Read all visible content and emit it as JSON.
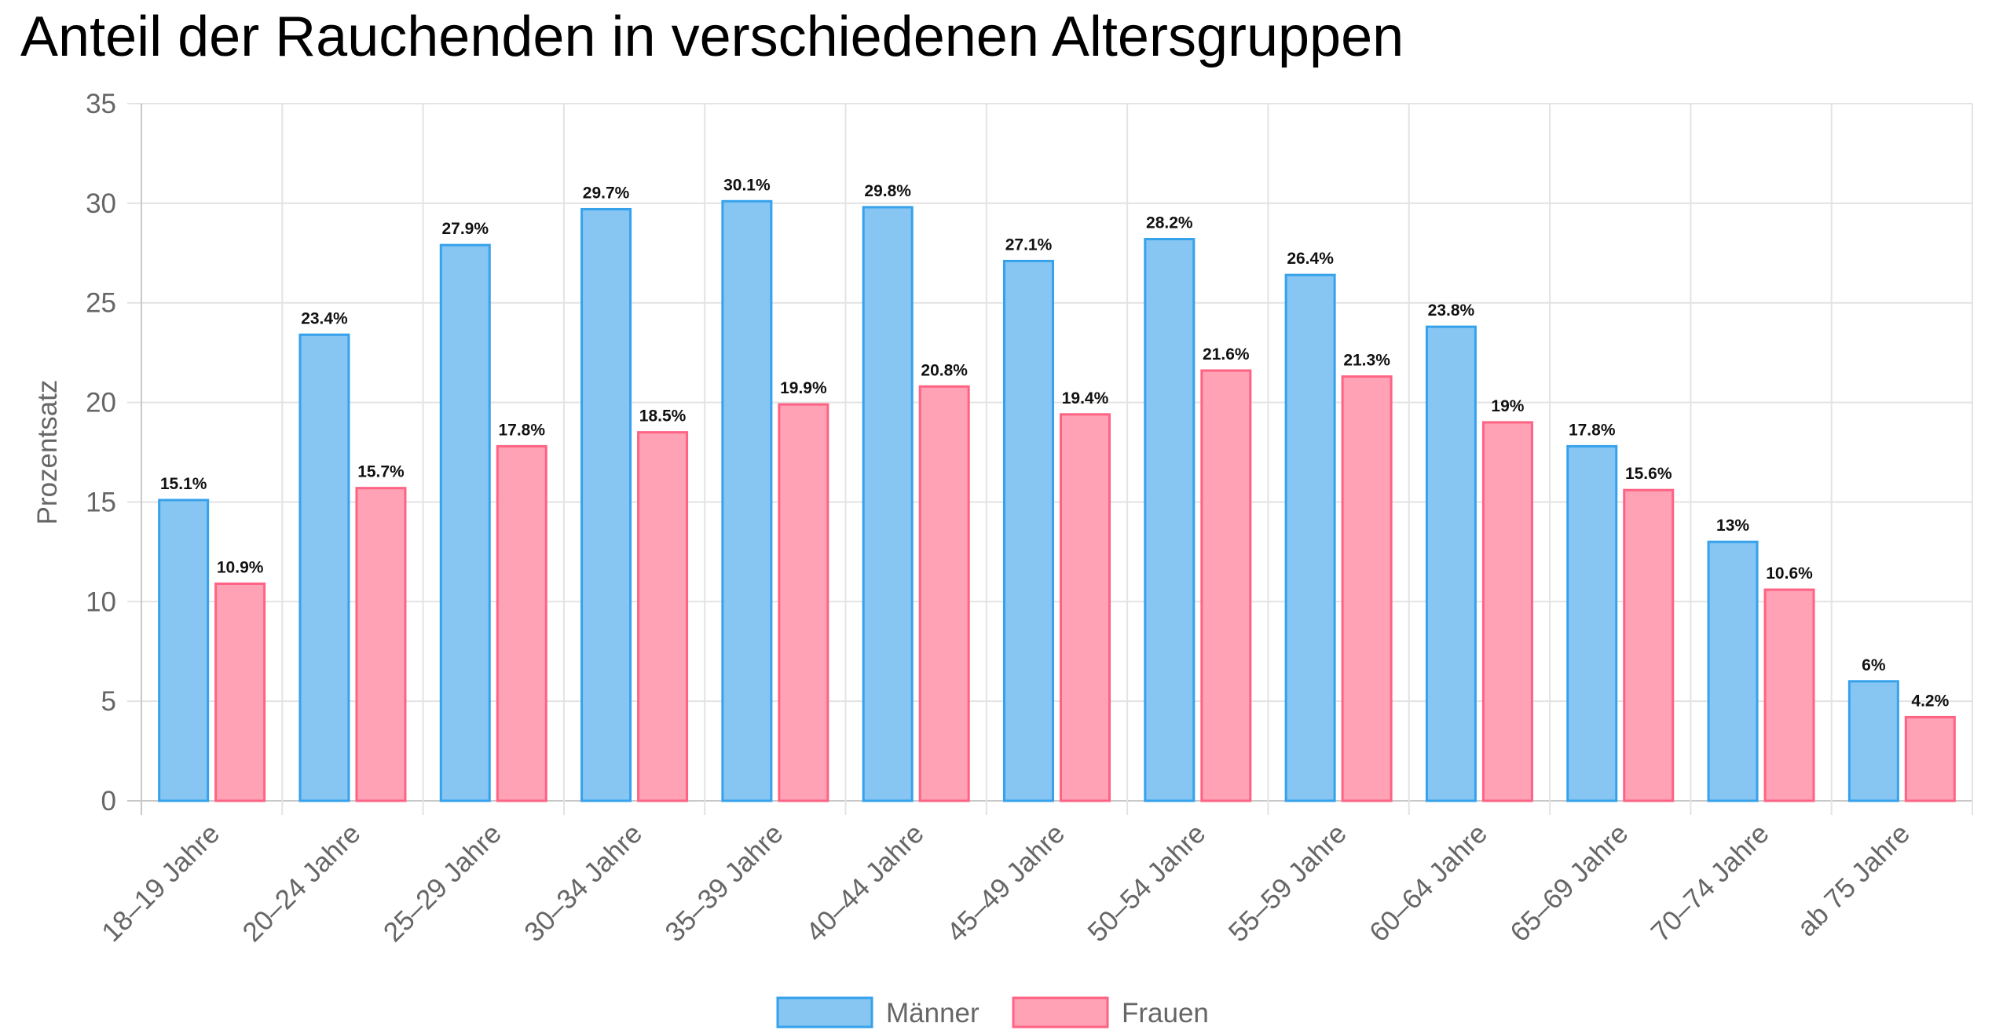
{
  "chart_data": {
    "type": "bar",
    "title": "Anteil der Rauchenden in verschiedenen Altersgruppen",
    "xlabel": "",
    "ylabel": "Prozentsatz",
    "ylim": [
      0,
      35
    ],
    "yticks": [
      "0",
      "5",
      "10",
      "15",
      "20",
      "25",
      "30",
      "35"
    ],
    "grid": true,
    "legend_position": "bottom",
    "categories": [
      "18–19 Jahre",
      "20–24 Jahre",
      "25–29 Jahre",
      "30–34 Jahre",
      "35–39 Jahre",
      "40–44 Jahre",
      "45–49 Jahre",
      "50–54 Jahre",
      "55–59 Jahre",
      "60–64 Jahre",
      "65–69 Jahre",
      "70–74 Jahre",
      "ab 75 Jahre"
    ],
    "series": [
      {
        "name": "Männer",
        "fill": "#87c5f3",
        "stroke": "#36a2eb",
        "values": [
          15.1,
          23.4,
          27.9,
          29.7,
          30.1,
          29.8,
          27.1,
          28.2,
          26.4,
          23.8,
          17.8,
          13,
          6
        ],
        "labels": [
          "15.1%",
          "23.4%",
          "27.9%",
          "29.7%",
          "30.1%",
          "29.8%",
          "27.1%",
          "28.2%",
          "26.4%",
          "23.8%",
          "17.8%",
          "13%",
          "6%"
        ]
      },
      {
        "name": "Frauen",
        "fill": "#ffa2b5",
        "stroke": "#ff6384",
        "values": [
          10.9,
          15.7,
          17.8,
          18.5,
          19.9,
          20.8,
          19.4,
          21.6,
          21.3,
          19,
          15.6,
          10.6,
          4.2
        ],
        "labels": [
          "10.9%",
          "15.7%",
          "17.8%",
          "18.5%",
          "19.9%",
          "20.8%",
          "19.4%",
          "21.6%",
          "21.3%",
          "19%",
          "15.6%",
          "10.6%",
          "4.2%"
        ]
      }
    ]
  }
}
